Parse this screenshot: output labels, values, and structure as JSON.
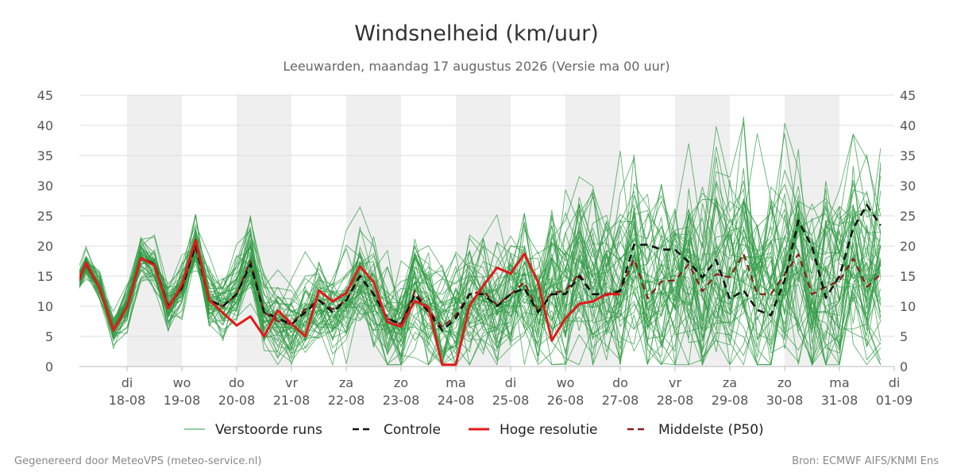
{
  "chart_data": {
    "type": "line",
    "title": "Windsnelheid (km/uur)",
    "subtitle": "Leeuwarden, maandag 17 augustus 2026 (Versie ma 00 uur)",
    "ylim": [
      0,
      45
    ],
    "yticks": [
      0,
      5,
      10,
      15,
      20,
      25,
      30,
      35,
      40,
      45
    ],
    "x_range": [
      -1,
      29.5
    ],
    "weekend_shading": false,
    "day_ticks": [
      {
        "x": 2,
        "day": "di",
        "date": "18-08"
      },
      {
        "x": 4,
        "day": "wo",
        "date": "19-08"
      },
      {
        "x": 6,
        "day": "do",
        "date": "20-08"
      },
      {
        "x": 8,
        "day": "vr",
        "date": "21-08"
      },
      {
        "x": 10,
        "day": "za",
        "date": "22-08"
      },
      {
        "x": 12,
        "day": "zo",
        "date": "23-08"
      },
      {
        "x": 14,
        "day": "ma",
        "date": "24-08"
      },
      {
        "x": 16,
        "day": "di",
        "date": "25-08"
      },
      {
        "x": 18,
        "day": "wo",
        "date": "26-08"
      },
      {
        "x": 20,
        "day": "do",
        "date": "27-08"
      },
      {
        "x": 22,
        "day": "vr",
        "date": "28-08"
      },
      {
        "x": 24,
        "day": "za",
        "date": "29-08"
      },
      {
        "x": 26,
        "day": "zo",
        "date": "30-08"
      },
      {
        "x": 28,
        "day": "ma",
        "date": "31-08"
      },
      {
        "x": 30,
        "day": "di",
        "date": "01-09"
      }
    ],
    "shaded_days": [
      [
        2,
        4
      ],
      [
        6,
        8
      ],
      [
        10,
        12
      ],
      [
        14,
        16
      ],
      [
        18,
        20
      ],
      [
        22,
        24
      ],
      [
        26,
        28
      ]
    ],
    "series": [
      {
        "name": "Hoge resolutie",
        "role": "hres",
        "color": "#e21a1a",
        "x": [
          0,
          0.5,
          1,
          1.5,
          2,
          2.5,
          3,
          3.5,
          4,
          4.5,
          5,
          5.5,
          6,
          6.5,
          7,
          7.5,
          8,
          8.5,
          9,
          9.5,
          10,
          10.5,
          11,
          11.5,
          12,
          12.5,
          13,
          13.5,
          14,
          14.5,
          15,
          15.5,
          16,
          16.5,
          17,
          17.5,
          18,
          18.5,
          19,
          19.5,
          20
        ],
        "values": [
          11.5,
          17.2,
          13.0,
          6.0,
          9.9,
          18.0,
          16.8,
          9.6,
          13.6,
          21.0,
          11.0,
          8.9,
          6.8,
          8.3,
          5.0,
          9.3,
          7.1,
          5.0,
          12.6,
          10.8,
          12.2,
          16.6,
          14.0,
          7.4,
          6.6,
          10.9,
          9.8,
          0.3,
          0.3,
          10.1,
          13.4,
          16.4,
          15.4,
          18.7,
          14.0,
          4.3,
          8.0,
          10.4,
          10.8,
          12.0,
          12.0
        ]
      },
      {
        "name": "Controle",
        "role": "control",
        "color": "#111111",
        "x": [
          0,
          0.5,
          1,
          1.5,
          2,
          2.5,
          3,
          3.5,
          4,
          4.5,
          5,
          5.5,
          6,
          6.5,
          7,
          7.5,
          8,
          8.5,
          9,
          9.5,
          10,
          10.5,
          11,
          11.5,
          12,
          12.5,
          13,
          13.5,
          14,
          14.5,
          15,
          15.5,
          16,
          16.5,
          17,
          17.5,
          18,
          18.5,
          19,
          19.5,
          20,
          20.5,
          21,
          21.5,
          22,
          22.5,
          23,
          23.5,
          24,
          24.5,
          25,
          25.5,
          26,
          26.5,
          27,
          27.5,
          28,
          28.5,
          29,
          29.5
        ],
        "values": [
          12,
          17,
          13,
          6,
          10,
          18,
          17,
          10,
          13,
          20,
          11,
          10,
          12,
          17,
          9,
          8,
          7,
          9,
          11,
          9,
          11,
          15,
          12,
          8,
          7,
          12,
          9,
          6,
          8,
          12,
          12,
          10,
          12,
          13,
          9,
          12,
          12,
          15,
          12,
          12,
          12.5,
          20.2,
          20.2,
          19.4,
          19.4,
          17.3,
          14.8,
          17.7,
          11.2,
          12.6,
          9.4,
          8.5,
          14.3,
          24.2,
          19.9,
          11.4,
          15.0,
          22.9,
          26.8,
          23.4
        ]
      },
      {
        "name": "Middelste (P50)",
        "role": "median",
        "color": "#8b1a1a",
        "x": [
          0,
          0.5,
          1,
          1.5,
          2,
          2.5,
          3,
          3.5,
          4,
          4.5,
          5,
          5.5,
          6,
          6.5,
          7,
          7.5,
          8,
          8.5,
          9,
          9.5,
          10,
          10.5,
          11,
          11.5,
          12,
          12.5,
          13,
          13.5,
          14,
          14.5,
          15,
          15.5,
          16,
          16.5,
          17,
          17.5,
          18,
          18.5,
          19,
          19.5,
          20,
          20.5,
          21,
          21.5,
          22,
          22.5,
          23,
          23.5,
          24,
          24.5,
          25,
          25.5,
          26,
          26.5,
          27,
          27.5,
          28,
          28.5,
          29,
          29.5
        ],
        "values": [
          12,
          17,
          13,
          6,
          10,
          18,
          17,
          10,
          13,
          20,
          11,
          10,
          12,
          17.5,
          9,
          7.5,
          7,
          9.5,
          11,
          9.5,
          11,
          15,
          12,
          8,
          7,
          12.5,
          9.5,
          6.5,
          8.5,
          12,
          12.5,
          10.2,
          12,
          14,
          9.2,
          12.2,
          12.6,
          15.4,
          12.0,
          11.8,
          12.6,
          17.8,
          11.3,
          14.1,
          14.3,
          17.0,
          12.5,
          15.3,
          14.8,
          18.7,
          12.0,
          12.0,
          15.3,
          18.6,
          12.0,
          13.2,
          14.2,
          17.9,
          13.2,
          15.3
        ]
      }
    ],
    "ensemble": {
      "name": "Verstoorde runs",
      "color": "#2e9a42",
      "members": 50,
      "seed": 17
    },
    "legend": {
      "position": "bottom",
      "items": [
        {
          "label": "Verstoorde runs",
          "style": "thin-solid",
          "color": "#2e9a42"
        },
        {
          "label": "Controle",
          "style": "dashed",
          "color": "#111111"
        },
        {
          "label": "Hoge resolutie",
          "style": "solid",
          "color": "#e21a1a"
        },
        {
          "label": "Middelste (P50)",
          "style": "dashed",
          "color": "#8b1a1a"
        }
      ]
    }
  },
  "footer": {
    "left": "Gegenereerd door MeteoVPS (meteo-service.nl)",
    "right": "Bron: ECMWF AIFS/KNMI Ens"
  }
}
